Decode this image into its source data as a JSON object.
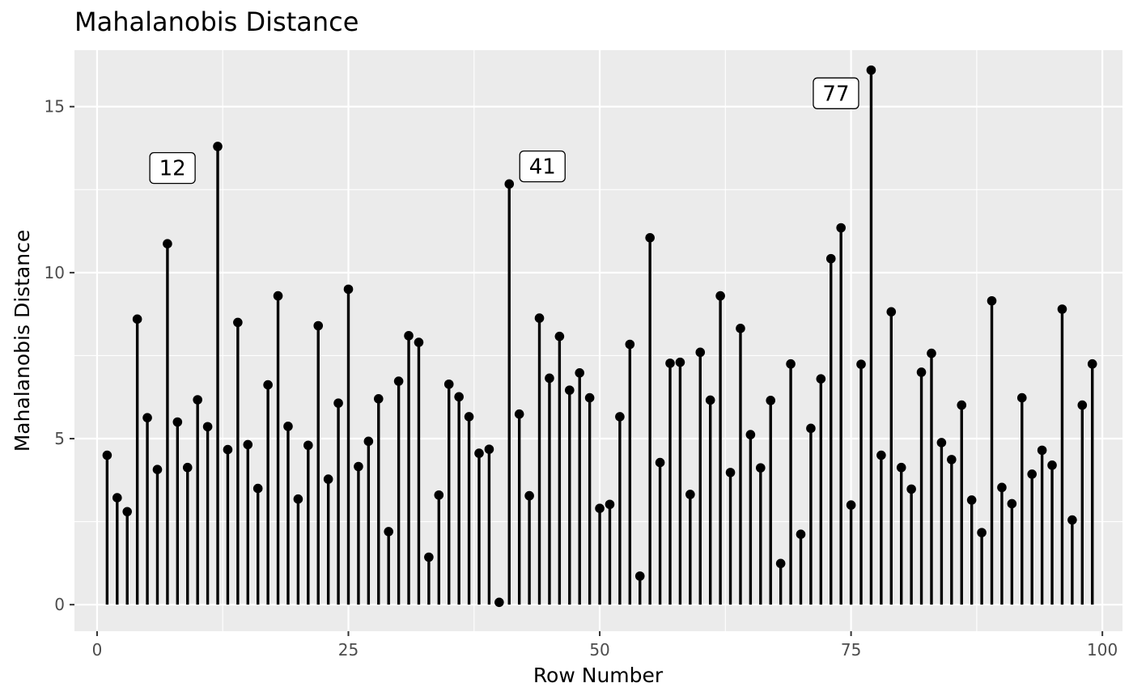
{
  "chart_data": {
    "type": "lollipop",
    "title": "Mahalanobis Distance",
    "xlabel": "Row Number",
    "ylabel": "Mahalanobis Distance",
    "xlim": [
      -2.25,
      102
    ],
    "ylim": [
      -0.8,
      16.7
    ],
    "xticks": [
      0,
      25,
      50,
      75,
      100
    ],
    "yticks": [
      0,
      5,
      10,
      15
    ],
    "grid": true,
    "legend": "none",
    "x": [
      1,
      2,
      3,
      4,
      5,
      6,
      7,
      8,
      9,
      10,
      11,
      12,
      13,
      14,
      15,
      16,
      17,
      18,
      19,
      20,
      21,
      22,
      23,
      24,
      25,
      26,
      27,
      28,
      29,
      30,
      31,
      32,
      33,
      34,
      35,
      36,
      37,
      38,
      39,
      40,
      41,
      42,
      43,
      44,
      45,
      46,
      47,
      48,
      49,
      50,
      51,
      52,
      53,
      54,
      55,
      56,
      57,
      58,
      59,
      60,
      61,
      62,
      63,
      64,
      65,
      66,
      67,
      68,
      69,
      70,
      71,
      72,
      73,
      74,
      75,
      76,
      77,
      78,
      79,
      80,
      81,
      82,
      83,
      84,
      85,
      86,
      87,
      88,
      89,
      90,
      91,
      92,
      93,
      94,
      95,
      96,
      97,
      98,
      99
    ],
    "y": [
      4.5,
      3.22,
      2.8,
      8.6,
      5.63,
      4.07,
      10.87,
      5.5,
      4.13,
      6.17,
      5.36,
      13.8,
      4.67,
      8.5,
      4.82,
      3.5,
      6.62,
      9.3,
      5.37,
      3.18,
      4.8,
      8.4,
      3.78,
      6.07,
      9.5,
      4.16,
      4.92,
      6.2,
      2.2,
      6.73,
      8.1,
      7.9,
      1.43,
      3.3,
      6.64,
      6.26,
      5.66,
      4.56,
      4.68,
      0.07,
      12.67,
      5.74,
      3.28,
      8.63,
      6.82,
      8.08,
      6.46,
      6.98,
      6.23,
      2.9,
      3.02,
      5.66,
      7.84,
      0.86,
      11.05,
      4.28,
      7.27,
      7.3,
      3.32,
      7.6,
      6.16,
      9.3,
      3.98,
      8.32,
      5.12,
      4.12,
      6.15,
      1.24,
      7.25,
      2.12,
      5.31,
      6.8,
      10.42,
      11.35,
      3.0,
      7.24,
      16.1,
      4.5,
      8.82,
      4.13,
      3.48,
      7.0,
      7.57,
      4.88,
      4.37,
      6.01,
      3.15,
      2.17,
      9.15,
      3.53,
      3.04,
      6.23,
      3.93,
      4.65,
      4.2,
      8.9,
      2.55,
      6.01,
      7.25
    ],
    "annotations": [
      {
        "label": "12",
        "x": 7.5,
        "y": 13.15
      },
      {
        "label": "41",
        "x": 44.3,
        "y": 13.2
      },
      {
        "label": "77",
        "x": 73.5,
        "y": 15.4
      }
    ]
  }
}
